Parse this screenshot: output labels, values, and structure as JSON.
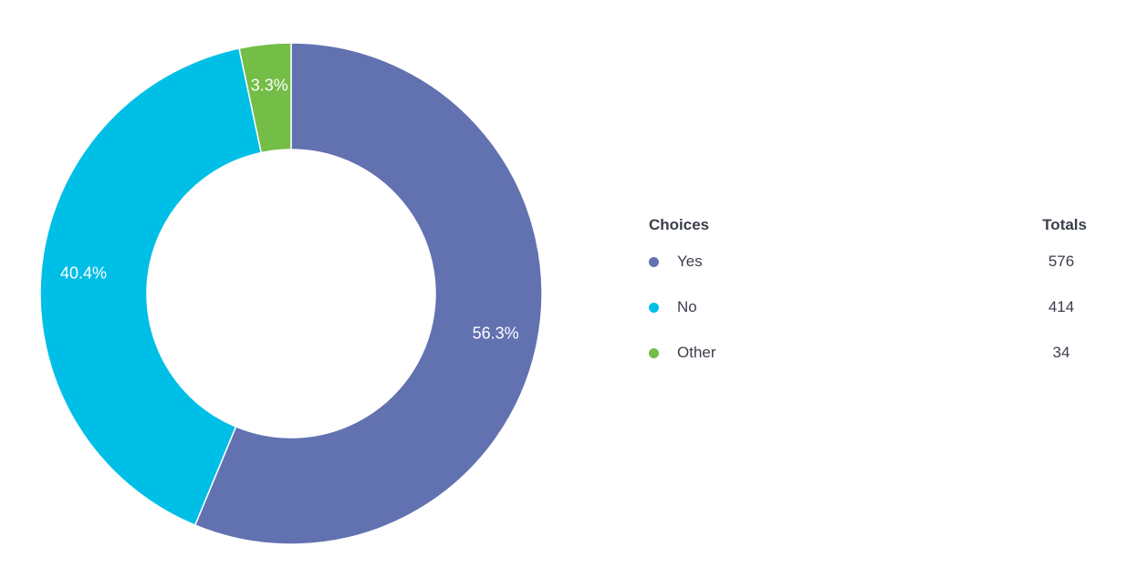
{
  "chart_data": {
    "type": "pie",
    "variant": "donut",
    "categories": [
      "Yes",
      "No",
      "Other"
    ],
    "values": [
      576,
      414,
      34
    ],
    "percent_labels": [
      "56.3%",
      "40.4%",
      "3.3%"
    ],
    "colors": [
      "#6271b0",
      "#00bfe6",
      "#74bd46"
    ],
    "start": "12 o'clock, clockwise",
    "legend_placement": "right"
  },
  "legend": {
    "choices_header": "Choices",
    "totals_header": "Totals",
    "rows": [
      {
        "label": "Yes",
        "total": "576"
      },
      {
        "label": "No",
        "total": "414"
      },
      {
        "label": "Other",
        "total": "34"
      }
    ]
  }
}
